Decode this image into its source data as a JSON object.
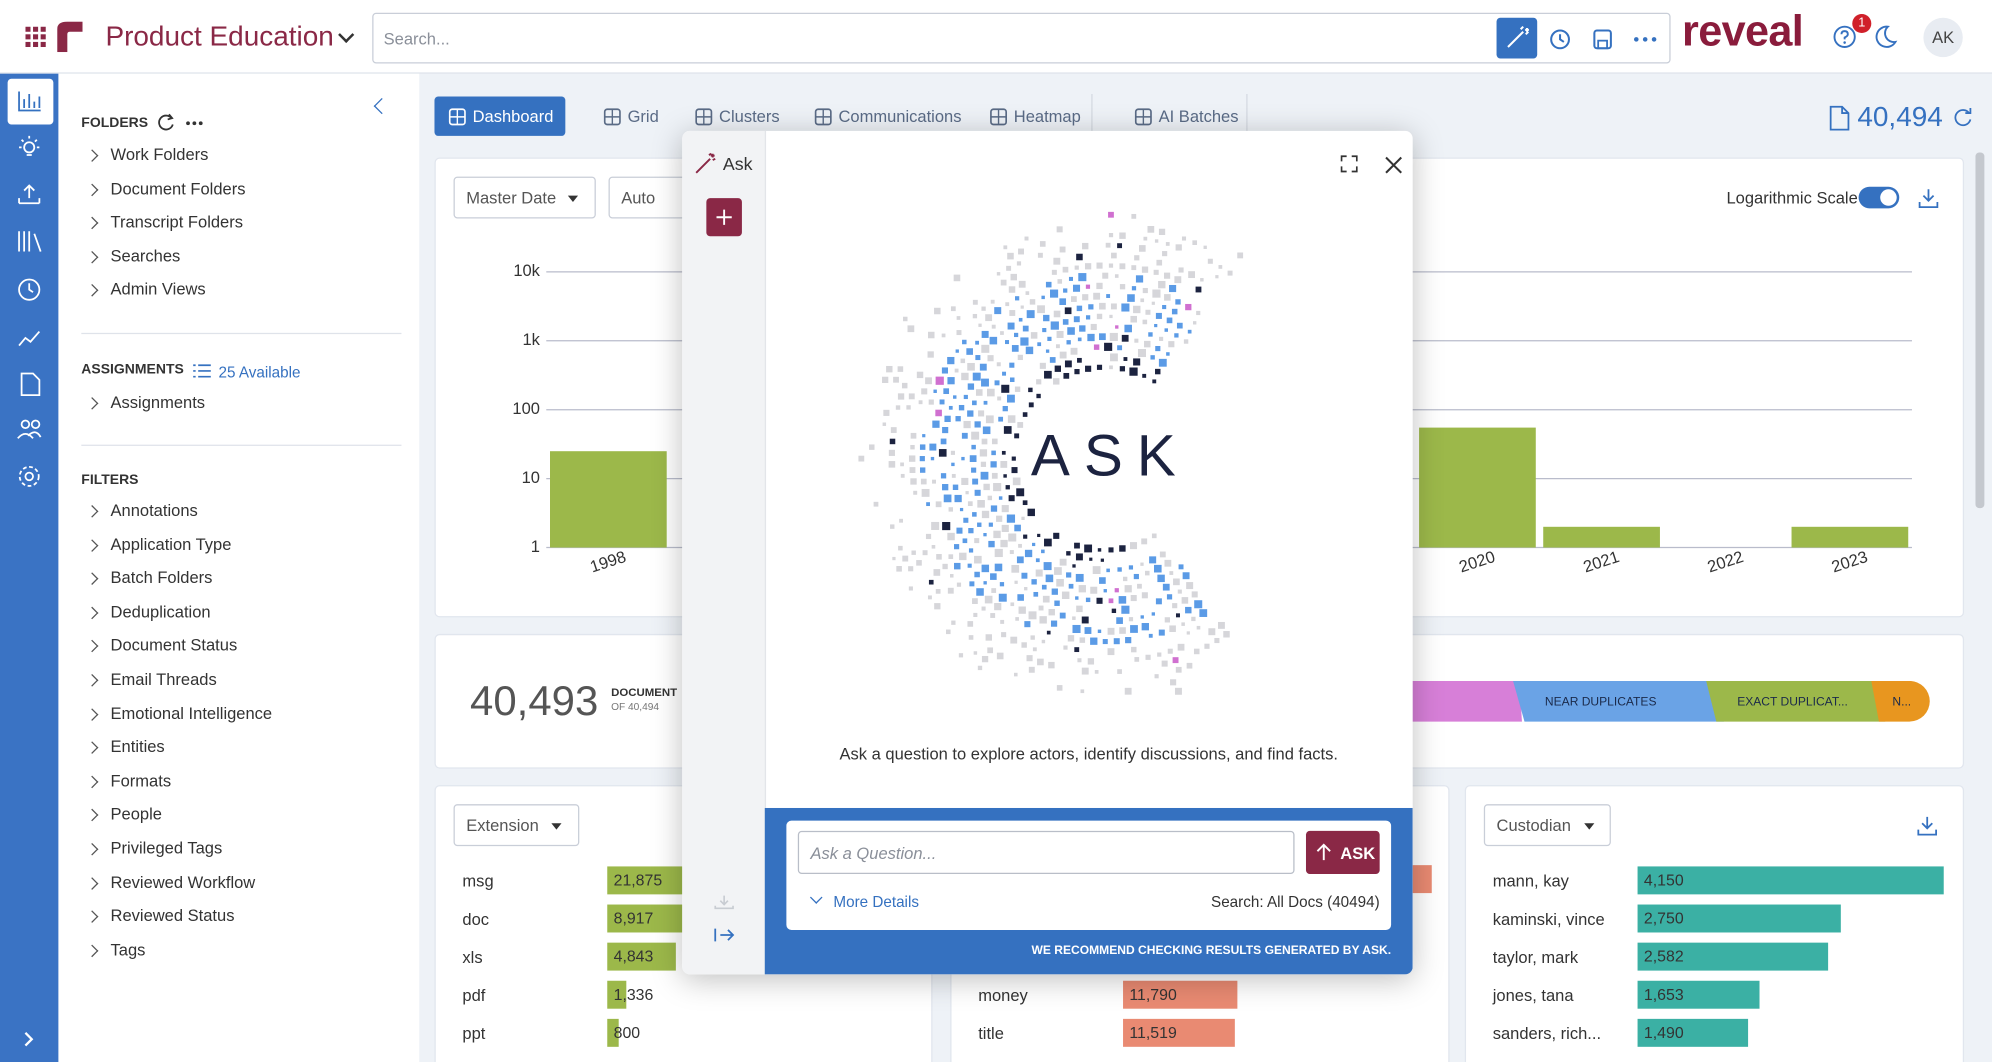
{
  "header": {
    "app_title": "Product Education",
    "search_placeholder": "Search...",
    "brand": "reveal",
    "notification_count": 1,
    "avatar": "AK"
  },
  "sidebar": {
    "folders_title": "FOLDERS",
    "folders": [
      "Work Folders",
      "Document Folders",
      "Transcript Folders",
      "Searches",
      "Admin Views"
    ],
    "assignments_title": "ASSIGNMENTS",
    "assignments_available": "25 Available",
    "assignments": [
      "Assignments"
    ],
    "filters_title": "FILTERS",
    "filters": [
      "Annotations",
      "Application Type",
      "Batch Folders",
      "Deduplication",
      "Document Status",
      "Email Threads",
      "Emotional Intelligence",
      "Entities",
      "Formats",
      "People",
      "Privileged Tags",
      "Reviewed Workflow",
      "Reviewed Status",
      "Tags"
    ]
  },
  "tabs": [
    "Dashboard",
    "Grid",
    "Clusters",
    "Communications",
    "Heatmap",
    "AI Batches"
  ],
  "doc_count": "40,494",
  "chart_panel": {
    "date_field": "Master Date",
    "interval": "Auto",
    "log_scale_label": "Logarithmic Scale"
  },
  "chart_data": {
    "type": "bar",
    "categories": [
      "1998",
      null,
      null,
      null,
      null,
      null,
      null,
      "2020",
      "2021",
      "2022",
      "2023"
    ],
    "values": [
      25,
      null,
      null,
      null,
      null,
      null,
      null,
      55,
      2,
      null,
      2
    ],
    "color": "#9cb84a",
    "log_scale": true,
    "grid": true,
    "ylim": [
      1,
      10000
    ],
    "yticks": [
      1,
      10,
      100,
      {
        "value": 1000,
        "label": "1k"
      },
      {
        "value": 10000,
        "label": "10k"
      }
    ]
  },
  "summary": {
    "count": "40,493",
    "label": "DOCUMENT",
    "sublabel": "OF 40,494",
    "segments": [
      "NEAR DUPLICATES",
      "EXACT DUPLICAT...",
      "N..."
    ]
  },
  "extension_card": {
    "field": "Extension",
    "color": "#9cb84a",
    "categories": [
      "msg",
      "doc",
      "xls",
      "pdf",
      "ppt"
    ],
    "values": [
      21875,
      8917,
      4843,
      1336,
      800
    ],
    "value_labels": [
      "21,875",
      "8,917",
      "4,843",
      "1,336",
      "800"
    ]
  },
  "topic_card": {
    "color": "#e98a72",
    "categories": [
      "money",
      "title"
    ],
    "values": [
      11790,
      11519
    ],
    "value_labels": [
      "11,790",
      "11,519"
    ]
  },
  "custodian_card": {
    "field": "Custodian",
    "color": "#3bb0a4",
    "categories": [
      "mann, kay",
      "kaminski, vince",
      "taylor, mark",
      "jones, tana",
      "sanders, rich..."
    ],
    "values": [
      4150,
      2750,
      2582,
      1653,
      1490
    ],
    "value_labels": [
      "4,150",
      "2,750",
      "2,582",
      "1,653",
      "1,490"
    ]
  },
  "ask": {
    "title": "Ask",
    "logo_text": "ASK",
    "prompt": "Ask a question to explore actors, identify discussions, and find facts.",
    "input_placeholder": "Ask a Question...",
    "button": "ASK",
    "more_details": "More Details",
    "search_scope": "Search: All Docs (40494)",
    "disclaimer": "WE RECOMMEND CHECKING RESULTS GENERATED BY ASK."
  }
}
